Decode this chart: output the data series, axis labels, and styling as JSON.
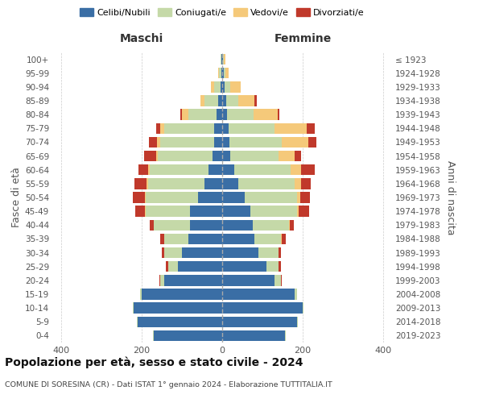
{
  "age_groups": [
    "0-4",
    "5-9",
    "10-14",
    "15-19",
    "20-24",
    "25-29",
    "30-34",
    "35-39",
    "40-44",
    "45-49",
    "50-54",
    "55-59",
    "60-64",
    "65-69",
    "70-74",
    "75-79",
    "80-84",
    "85-89",
    "90-94",
    "95-99",
    "100+"
  ],
  "birth_years": [
    "2019-2023",
    "2014-2018",
    "2009-2013",
    "2004-2008",
    "1999-2003",
    "1994-1998",
    "1989-1993",
    "1984-1988",
    "1979-1983",
    "1974-1978",
    "1969-1973",
    "1964-1968",
    "1959-1963",
    "1954-1958",
    "1949-1953",
    "1944-1948",
    "1939-1943",
    "1934-1938",
    "1929-1933",
    "1924-1928",
    "≤ 1923"
  ],
  "male_celibi": [
    170,
    210,
    220,
    200,
    145,
    110,
    100,
    85,
    80,
    80,
    60,
    45,
    35,
    25,
    20,
    20,
    15,
    10,
    5,
    3,
    2
  ],
  "male_coniugati": [
    2,
    2,
    2,
    5,
    10,
    25,
    45,
    60,
    90,
    110,
    130,
    140,
    145,
    135,
    135,
    125,
    70,
    35,
    15,
    5,
    2
  ],
  "male_vedovi": [
    0,
    0,
    0,
    0,
    0,
    0,
    0,
    0,
    0,
    2,
    3,
    3,
    4,
    5,
    8,
    10,
    15,
    10,
    8,
    2,
    0
  ],
  "male_divorziati": [
    0,
    0,
    0,
    0,
    2,
    5,
    5,
    10,
    10,
    25,
    30,
    30,
    25,
    30,
    20,
    10,
    5,
    0,
    0,
    0,
    0
  ],
  "female_celibi": [
    155,
    185,
    200,
    180,
    130,
    110,
    90,
    80,
    75,
    70,
    55,
    40,
    30,
    20,
    18,
    15,
    12,
    10,
    5,
    3,
    2
  ],
  "female_coniugati": [
    2,
    2,
    2,
    5,
    15,
    30,
    50,
    65,
    90,
    115,
    130,
    140,
    140,
    120,
    130,
    115,
    65,
    30,
    15,
    5,
    2
  ],
  "female_vedovi": [
    0,
    0,
    0,
    0,
    0,
    0,
    0,
    2,
    3,
    5,
    8,
    15,
    25,
    40,
    65,
    80,
    60,
    40,
    25,
    8,
    3
  ],
  "female_divorziati": [
    0,
    0,
    0,
    0,
    2,
    5,
    5,
    10,
    10,
    25,
    25,
    25,
    35,
    15,
    20,
    20,
    5,
    5,
    0,
    0,
    0
  ],
  "colors": {
    "celibi": "#3a6ea5",
    "coniugati": "#c5d9a8",
    "vedovi": "#f5c97a",
    "divorziati": "#c0392b"
  },
  "xlim": 420,
  "title": "Popolazione per età, sesso e stato civile - 2024",
  "subtitle": "COMUNE DI SORESINA (CR) - Dati ISTAT 1° gennaio 2024 - Elaborazione TUTTITALIA.IT",
  "ylabel_left": "Fasce di età",
  "ylabel_right": "Anni di nascita",
  "legend_labels": [
    "Celibi/Nubili",
    "Coniugati/e",
    "Vedovi/e",
    "Divorziati/e"
  ],
  "background_color": "#ffffff"
}
